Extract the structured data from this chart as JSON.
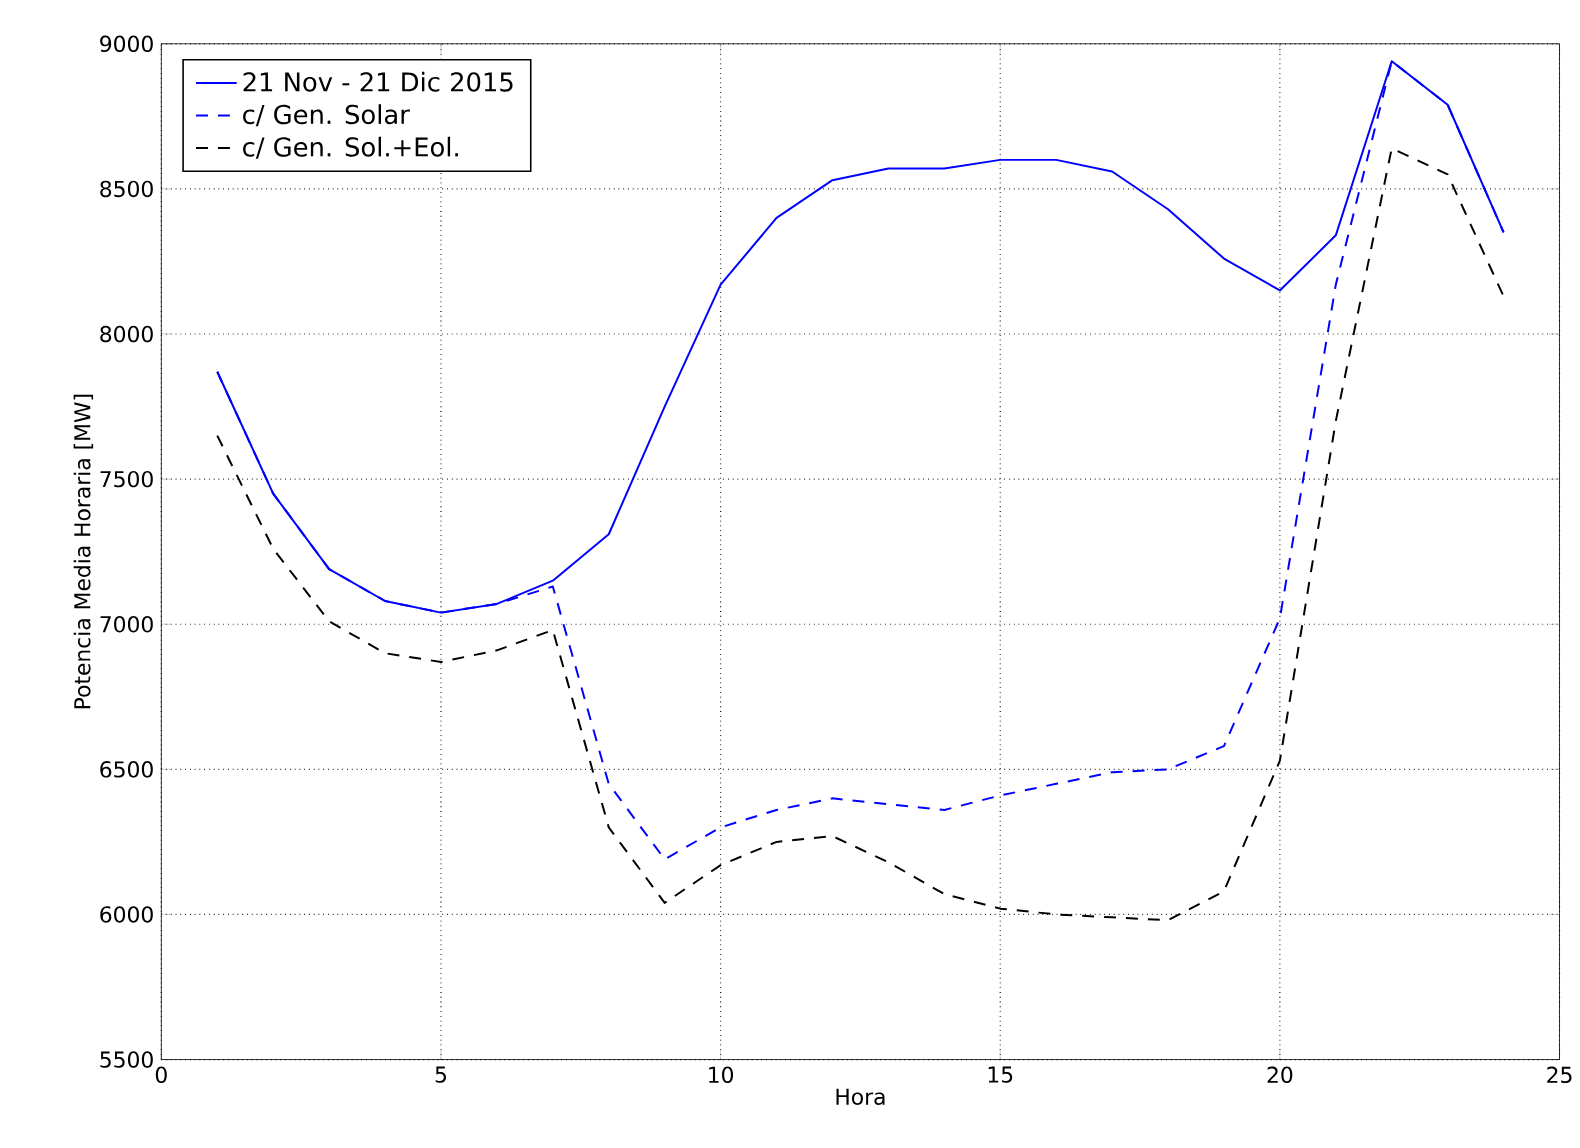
{
  "chart_data": {
    "type": "line",
    "xlabel": "Hora",
    "ylabel": "Potencia Media Horaria [MW]",
    "x": [
      1,
      2,
      3,
      4,
      5,
      6,
      7,
      8,
      9,
      10,
      11,
      12,
      13,
      14,
      15,
      16,
      17,
      18,
      19,
      20,
      21,
      22,
      23,
      24
    ],
    "series": [
      {
        "name": "21 Nov - 21 Dic 2015",
        "color": "#0000ff",
        "line_style": "solid",
        "values": [
          7870,
          7450,
          7190,
          7080,
          7040,
          7070,
          7150,
          7310,
          7750,
          8170,
          8400,
          8530,
          8570,
          8570,
          8600,
          8600,
          8560,
          8430,
          8260,
          8150,
          8340,
          8940,
          8790,
          8350
        ]
      },
      {
        "name": "c/ Gen. Solar",
        "color": "#0000ff",
        "line_style": "dashed",
        "values": [
          7870,
          7450,
          7190,
          7080,
          7040,
          7070,
          7130,
          6450,
          6190,
          6300,
          6360,
          6400,
          6380,
          6360,
          6410,
          6450,
          6490,
          6500,
          6580,
          7020,
          8170,
          8940,
          8790,
          8350
        ]
      },
      {
        "name": "c/ Gen. Sol.+Eol.",
        "color": "#000000",
        "line_style": "dashed",
        "values": [
          7650,
          7260,
          7010,
          6900,
          6870,
          6910,
          6980,
          6300,
          6040,
          6170,
          6250,
          6270,
          6180,
          6070,
          6020,
          6000,
          5990,
          5980,
          6080,
          6530,
          7700,
          8640,
          8550,
          8130
        ]
      }
    ],
    "xlim": [
      0,
      25
    ],
    "xticks": [
      0,
      5,
      10,
      15,
      20,
      25
    ],
    "ylim": [
      5500,
      9000
    ],
    "yticks": [
      5500,
      6000,
      6500,
      7000,
      7500,
      8000,
      8500,
      9000
    ],
    "grid": true,
    "legend": "top left",
    "marker": "none"
  }
}
